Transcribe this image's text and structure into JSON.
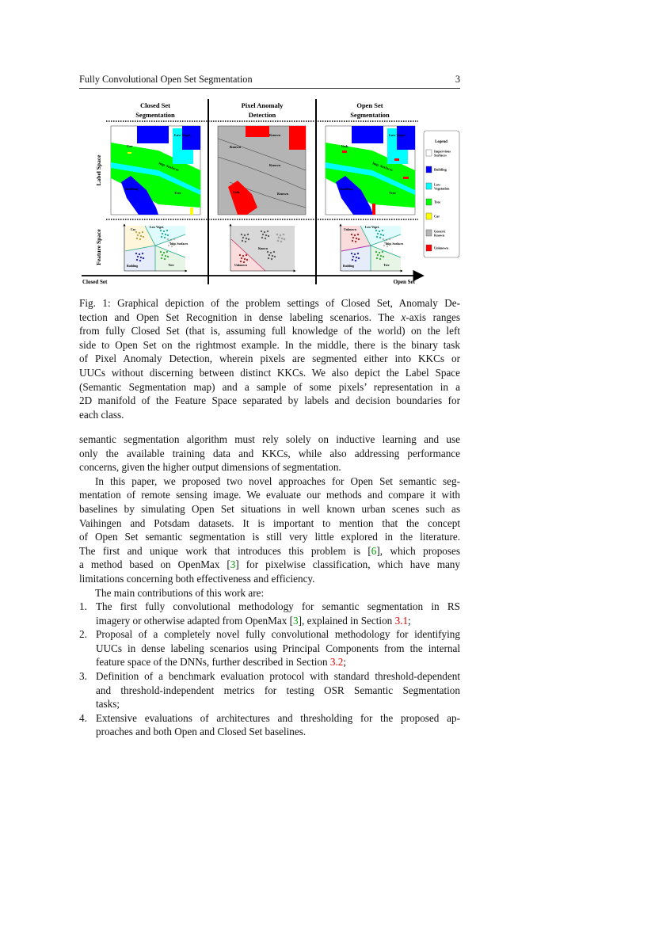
{
  "header": {
    "title": "Fully Convolutional Open Set Segmentation",
    "page": "3"
  },
  "figure": {
    "columns": [
      {
        "title1": "Closed Set",
        "title2": "Segmentation"
      },
      {
        "title1": "Pixel Anomaly",
        "title2": "Detection"
      },
      {
        "title1": "Open Set",
        "title2": "Segmentation"
      }
    ],
    "row_labels": [
      "Label Space",
      "Feature Space"
    ],
    "axis": {
      "left": "Closed Set",
      "right": "Open Set"
    },
    "map_labels": {
      "closed": [
        "Car",
        "Low Veget.",
        "Imp. Surfaces",
        "Building",
        "Tree"
      ],
      "anomaly": [
        "Known",
        "Known",
        "Known",
        "Unk.",
        "Known"
      ],
      "open": [
        "Unk.",
        "Low Veget.",
        "Imp. Surfaces",
        "Building",
        "Tree"
      ]
    },
    "feature_labels": {
      "closed": [
        "Car",
        "Low Veget.",
        "Imp. Surfaces",
        "Building",
        "Tree"
      ],
      "anomaly": [
        "Known",
        "Unknown"
      ],
      "open": [
        "Unknown",
        "Low Veget.",
        "Imp. Surfaces",
        "Building",
        "Tree"
      ]
    },
    "legend": {
      "title": "Legend",
      "items": [
        {
          "label1": "Impervious",
          "label2": "Surfaces",
          "color": "#ffffff"
        },
        {
          "label1": "Building",
          "label2": "",
          "color": "#0000ff"
        },
        {
          "label1": "Low",
          "label2": "Vegetation",
          "color": "#00ffff"
        },
        {
          "label1": "Tree",
          "label2": "",
          "color": "#00ff00"
        },
        {
          "label1": "Car",
          "label2": "",
          "color": "#ffff00"
        },
        {
          "label1": "Generic",
          "label2": "Known",
          "color": "#b4b4b4"
        },
        {
          "label1": "Unknown",
          "label2": "",
          "color": "#ff0000"
        }
      ]
    }
  },
  "caption": [
    [
      {
        "t": "Fig. 1: Graphical depiction of the problem settings of Closed Set, Anomaly De-"
      }
    ],
    [
      {
        "t": "tection and Open Set Recognition in dense labeling scenarios. The "
      },
      {
        "t": "x",
        "c": "it"
      },
      {
        "t": "-axis ranges"
      }
    ],
    [
      {
        "t": "from fully Closed Set (that is, assuming full knowledge of the world) on the left"
      }
    ],
    [
      {
        "t": "side to Open Set on the rightmost example. In the middle, there is the binary task"
      }
    ],
    [
      {
        "t": "of Pixel Anomaly Detection, wherein pixels are segmented either into KKCs or"
      }
    ],
    [
      {
        "t": "UUCs without discerning between distinct KKCs. We also depict the Label Space"
      }
    ],
    [
      {
        "t": "(Semantic Segmentation map) and a sample of some pixels’ representation in a"
      }
    ],
    [
      {
        "t": "2D manifold of the Feature Space separated by labels and decision boundaries for"
      }
    ],
    [
      {
        "t": "each class."
      }
    ]
  ],
  "body": [
    {
      "segs": [
        {
          "t": "semantic segmentation algorithm must rely solely on inductive learning and use"
        }
      ]
    },
    {
      "segs": [
        {
          "t": "only the available training data and KKCs, while also addressing performance"
        }
      ]
    },
    {
      "segs": [
        {
          "t": "concerns, given the higher output dimensions of segmentation."
        }
      ],
      "last": true
    },
    {
      "segs": [
        {
          "t": "In this paper, we proposed two novel approaches for Open Set semantic seg-"
        }
      ],
      "ind": true
    },
    {
      "segs": [
        {
          "t": "mentation of remote sensing image. We evaluate our methods and compare it with"
        }
      ]
    },
    {
      "segs": [
        {
          "t": "baselines by simulating Open Set situations in well known urban scenes such as"
        }
      ]
    },
    {
      "segs": [
        {
          "t": "Vaihingen and Potsdam datasets. It is important to mention that the concept"
        }
      ]
    },
    {
      "segs": [
        {
          "t": "of Open Set semantic segmentation is still very little explored in the literature."
        }
      ]
    },
    {
      "segs": [
        {
          "t": "The first and unique work that introduces this problem is ["
        },
        {
          "t": "6",
          "c": "g"
        },
        {
          "t": "], which proposes"
        }
      ]
    },
    {
      "segs": [
        {
          "t": "a method based on OpenMax ["
        },
        {
          "t": "3",
          "c": "g"
        },
        {
          "t": "] for pixelwise classification, which have many"
        }
      ]
    },
    {
      "segs": [
        {
          "t": "limitations concerning both effectiveness and efficiency."
        }
      ],
      "last": true
    },
    {
      "segs": [
        {
          "t": "The main contributions of this work are:"
        }
      ],
      "ind": true,
      "last": true
    }
  ],
  "contributions": [
    {
      "num": "1.",
      "lines": [
        [
          {
            "t": "The first fully convolutional methodology for semantic segmentation in RS"
          }
        ],
        [
          {
            "t": "imagery or otherwise adapted from OpenMax ["
          },
          {
            "t": "3",
            "c": "g"
          },
          {
            "t": "], explained in Section "
          },
          {
            "t": "3.1",
            "c": "red"
          },
          {
            "t": ";"
          }
        ]
      ]
    },
    {
      "num": "2.",
      "lines": [
        [
          {
            "t": "Proposal of a completely novel fully convolutional methodology for identifying"
          }
        ],
        [
          {
            "t": "UUCs in dense labeling scenarios using Principal Components from the internal"
          }
        ],
        [
          {
            "t": "feature space of the DNNs, further described in Section "
          },
          {
            "t": "3.2",
            "c": "red"
          },
          {
            "t": ";"
          }
        ]
      ]
    },
    {
      "num": "3.",
      "lines": [
        [
          {
            "t": "Definition of a benchmark evaluation protocol with standard threshold-dependent"
          }
        ],
        [
          {
            "t": "and threshold-independent metrics for testing OSR Semantic Segmentation"
          }
        ],
        [
          {
            "t": "tasks;"
          }
        ]
      ]
    },
    {
      "num": "4.",
      "lines": [
        [
          {
            "t": "Extensive evaluations of architectures and thresholding for the proposed ap-"
          }
        ],
        [
          {
            "t": "proaches and both Open and Closed Set baselines."
          }
        ]
      ]
    }
  ]
}
